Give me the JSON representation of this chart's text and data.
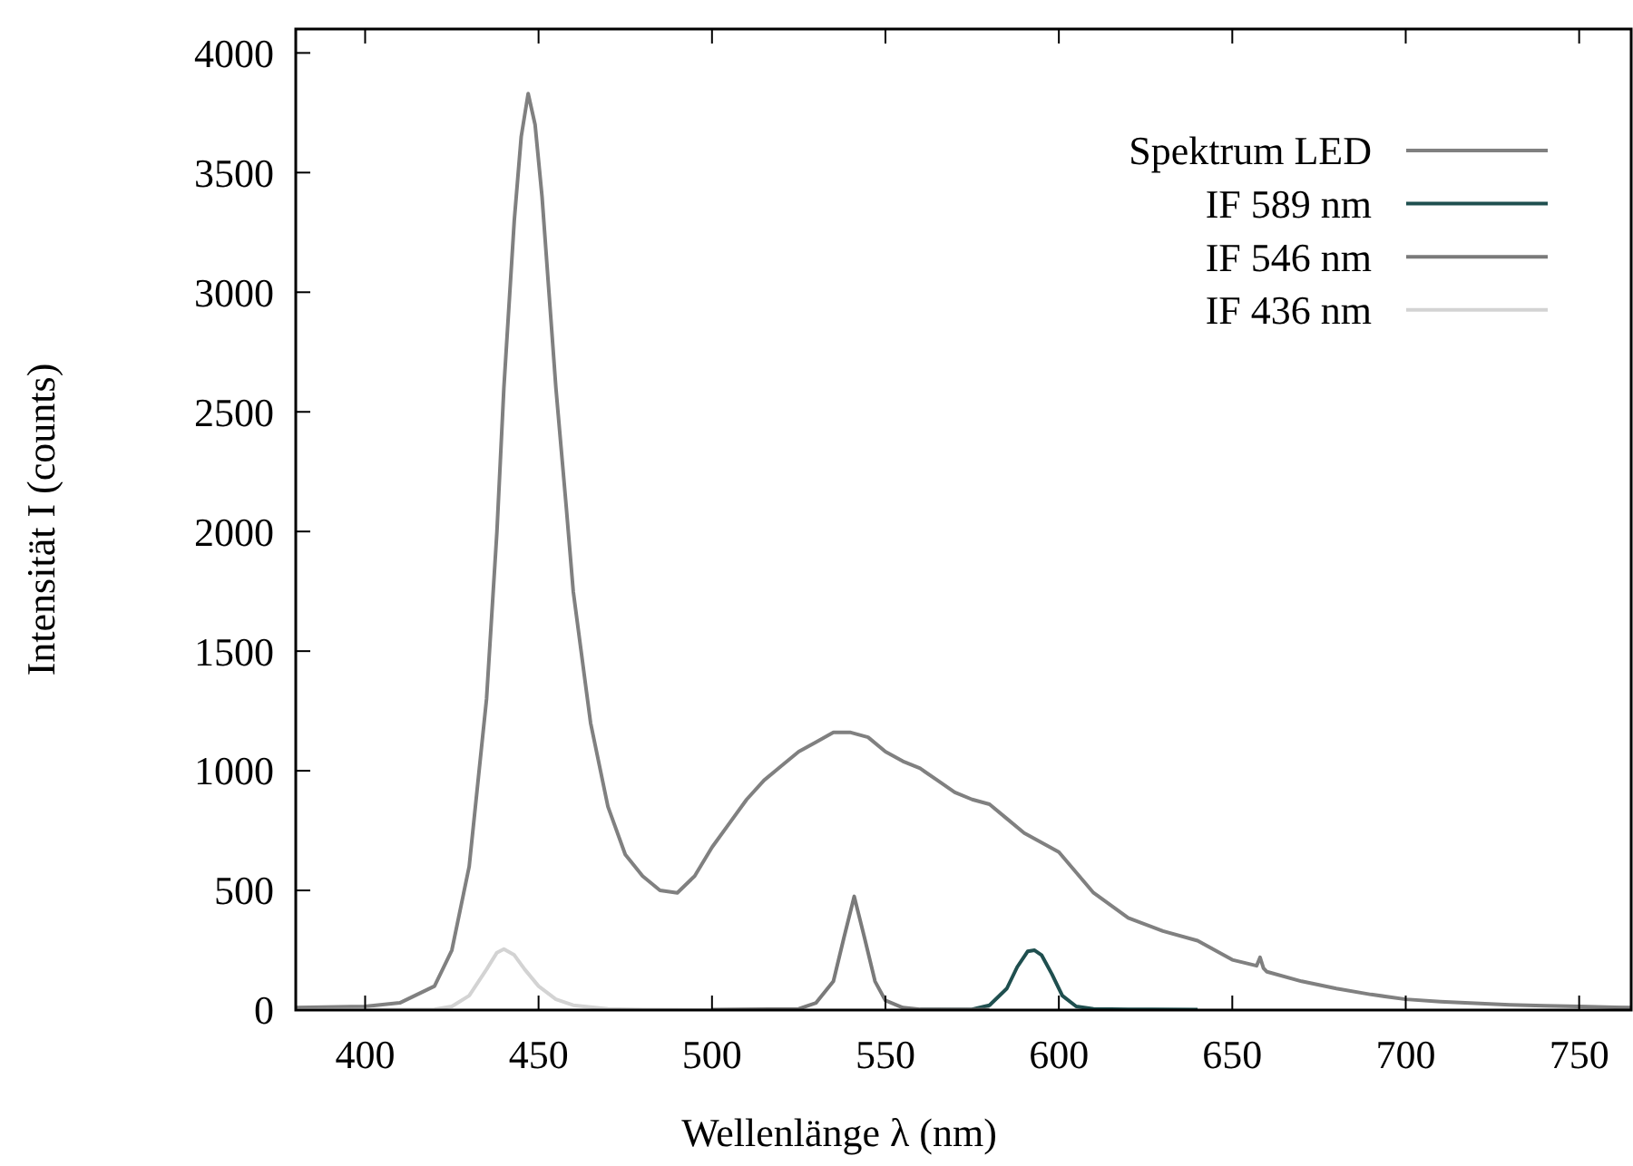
{
  "chart_data": {
    "type": "line",
    "xlabel": "Wellenlänge λ (nm)",
    "ylabel": "Intensität I (counts)",
    "xlim": [
      380,
      765
    ],
    "ylim": [
      0,
      4100
    ],
    "xticks": [
      400,
      450,
      500,
      550,
      600,
      650,
      700,
      750
    ],
    "yticks": [
      0,
      500,
      1000,
      1500,
      2000,
      2500,
      3000,
      3500,
      4000
    ],
    "grid": false,
    "legend": "top right",
    "line_style": "solid",
    "series": [
      {
        "name": "Spektrum LED",
        "color": "#808080",
        "x": [
          380,
          400,
          410,
          420,
          425,
          430,
          435,
          438,
          440,
          443,
          445,
          447,
          449,
          451,
          453,
          455,
          458,
          460,
          465,
          470,
          475,
          480,
          485,
          490,
          495,
          500,
          505,
          510,
          515,
          520,
          525,
          530,
          535,
          540,
          545,
          550,
          555,
          560,
          565,
          570,
          575,
          580,
          585,
          590,
          595,
          600,
          610,
          620,
          630,
          640,
          650,
          657,
          658,
          659,
          660,
          670,
          680,
          690,
          700,
          710,
          720,
          730,
          740,
          750,
          765
        ],
        "values": [
          10,
          15,
          30,
          100,
          250,
          600,
          1300,
          2000,
          2600,
          3300,
          3650,
          3830,
          3700,
          3400,
          3000,
          2600,
          2100,
          1750,
          1200,
          850,
          650,
          560,
          500,
          490,
          560,
          680,
          780,
          880,
          960,
          1020,
          1080,
          1120,
          1160,
          1160,
          1140,
          1080,
          1040,
          1010,
          960,
          910,
          880,
          860,
          800,
          740,
          700,
          660,
          490,
          385,
          330,
          290,
          210,
          185,
          220,
          175,
          160,
          120,
          90,
          65,
          45,
          35,
          28,
          22,
          18,
          15,
          10
        ]
      },
      {
        "name": "IF 589 nm",
        "color": "#1f4f4f",
        "x": [
          560,
          575,
          580,
          585,
          588,
          591,
          593,
          595,
          598,
          601,
          605,
          610,
          620,
          640
        ],
        "values": [
          2,
          3,
          20,
          90,
          180,
          245,
          250,
          230,
          150,
          60,
          15,
          5,
          3,
          2
        ]
      },
      {
        "name": "IF 546 nm",
        "color": "#7a7a7a",
        "x": [
          500,
          525,
          530,
          535,
          538,
          541,
          544,
          547,
          550,
          555,
          560,
          580
        ],
        "values": [
          2,
          5,
          30,
          120,
          300,
          475,
          300,
          120,
          40,
          10,
          3,
          2
        ]
      },
      {
        "name": "IF 436 nm",
        "color": "#d3d3d3",
        "x": [
          380,
          420,
          425,
          430,
          435,
          438,
          440,
          443,
          446,
          450,
          455,
          460,
          470,
          480,
          500
        ],
        "values": [
          0,
          3,
          15,
          60,
          170,
          240,
          255,
          230,
          170,
          100,
          45,
          20,
          5,
          2,
          0
        ]
      }
    ]
  }
}
